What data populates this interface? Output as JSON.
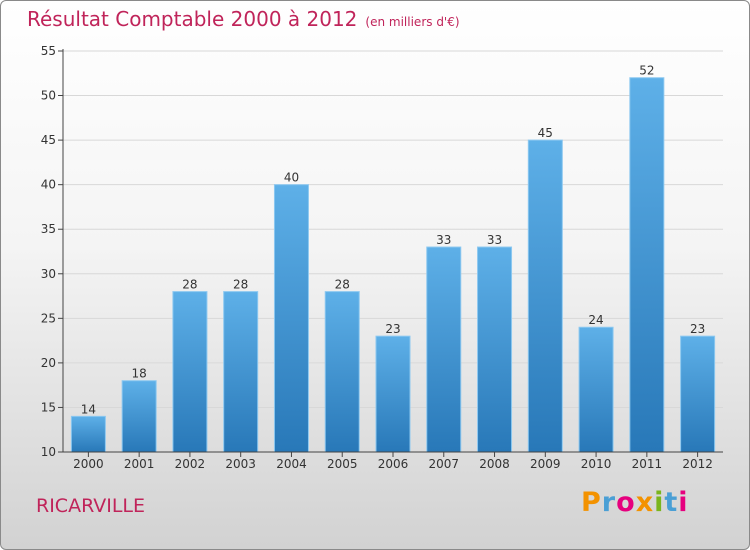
{
  "header": {
    "title": "Résultat Comptable 2000 à 2012",
    "subtitle": "(en milliers d'€)"
  },
  "footer": {
    "town": "RICARVILLE",
    "logo_letters": [
      "P",
      "r",
      "o",
      "x",
      "i",
      "t",
      "i"
    ],
    "logo_colors": [
      "#f39200",
      "#4a9fd5",
      "#e6007e",
      "#f39200",
      "#7ab51d",
      "#4a9fd5",
      "#e6007e"
    ]
  },
  "chart_data": {
    "type": "bar",
    "title": "Résultat Comptable 2000 à 2012",
    "subtitle": "(en milliers d'€)",
    "xlabel": "",
    "ylabel": "",
    "categories": [
      "2000",
      "2001",
      "2002",
      "2003",
      "2004",
      "2005",
      "2006",
      "2007",
      "2008",
      "2009",
      "2010",
      "2011",
      "2012"
    ],
    "values": [
      14,
      18,
      28,
      28,
      40,
      28,
      23,
      33,
      33,
      45,
      24,
      52,
      23
    ],
    "labels": [
      "14",
      "18",
      "28",
      "28",
      "40",
      "28",
      "23",
      "33",
      "33",
      "45",
      "24",
      "52",
      "23"
    ],
    "ylim": [
      10,
      55
    ],
    "yticks": [
      10,
      15,
      20,
      25,
      30,
      35,
      40,
      45,
      50,
      55
    ],
    "grid": true,
    "colors": {
      "bar_top": "#5eb0e8",
      "bar_bottom": "#2878b8",
      "bar_edge": "#8cc8f0",
      "axis": "#444444",
      "grid": "#d8d8d8",
      "text": "#333333"
    }
  }
}
